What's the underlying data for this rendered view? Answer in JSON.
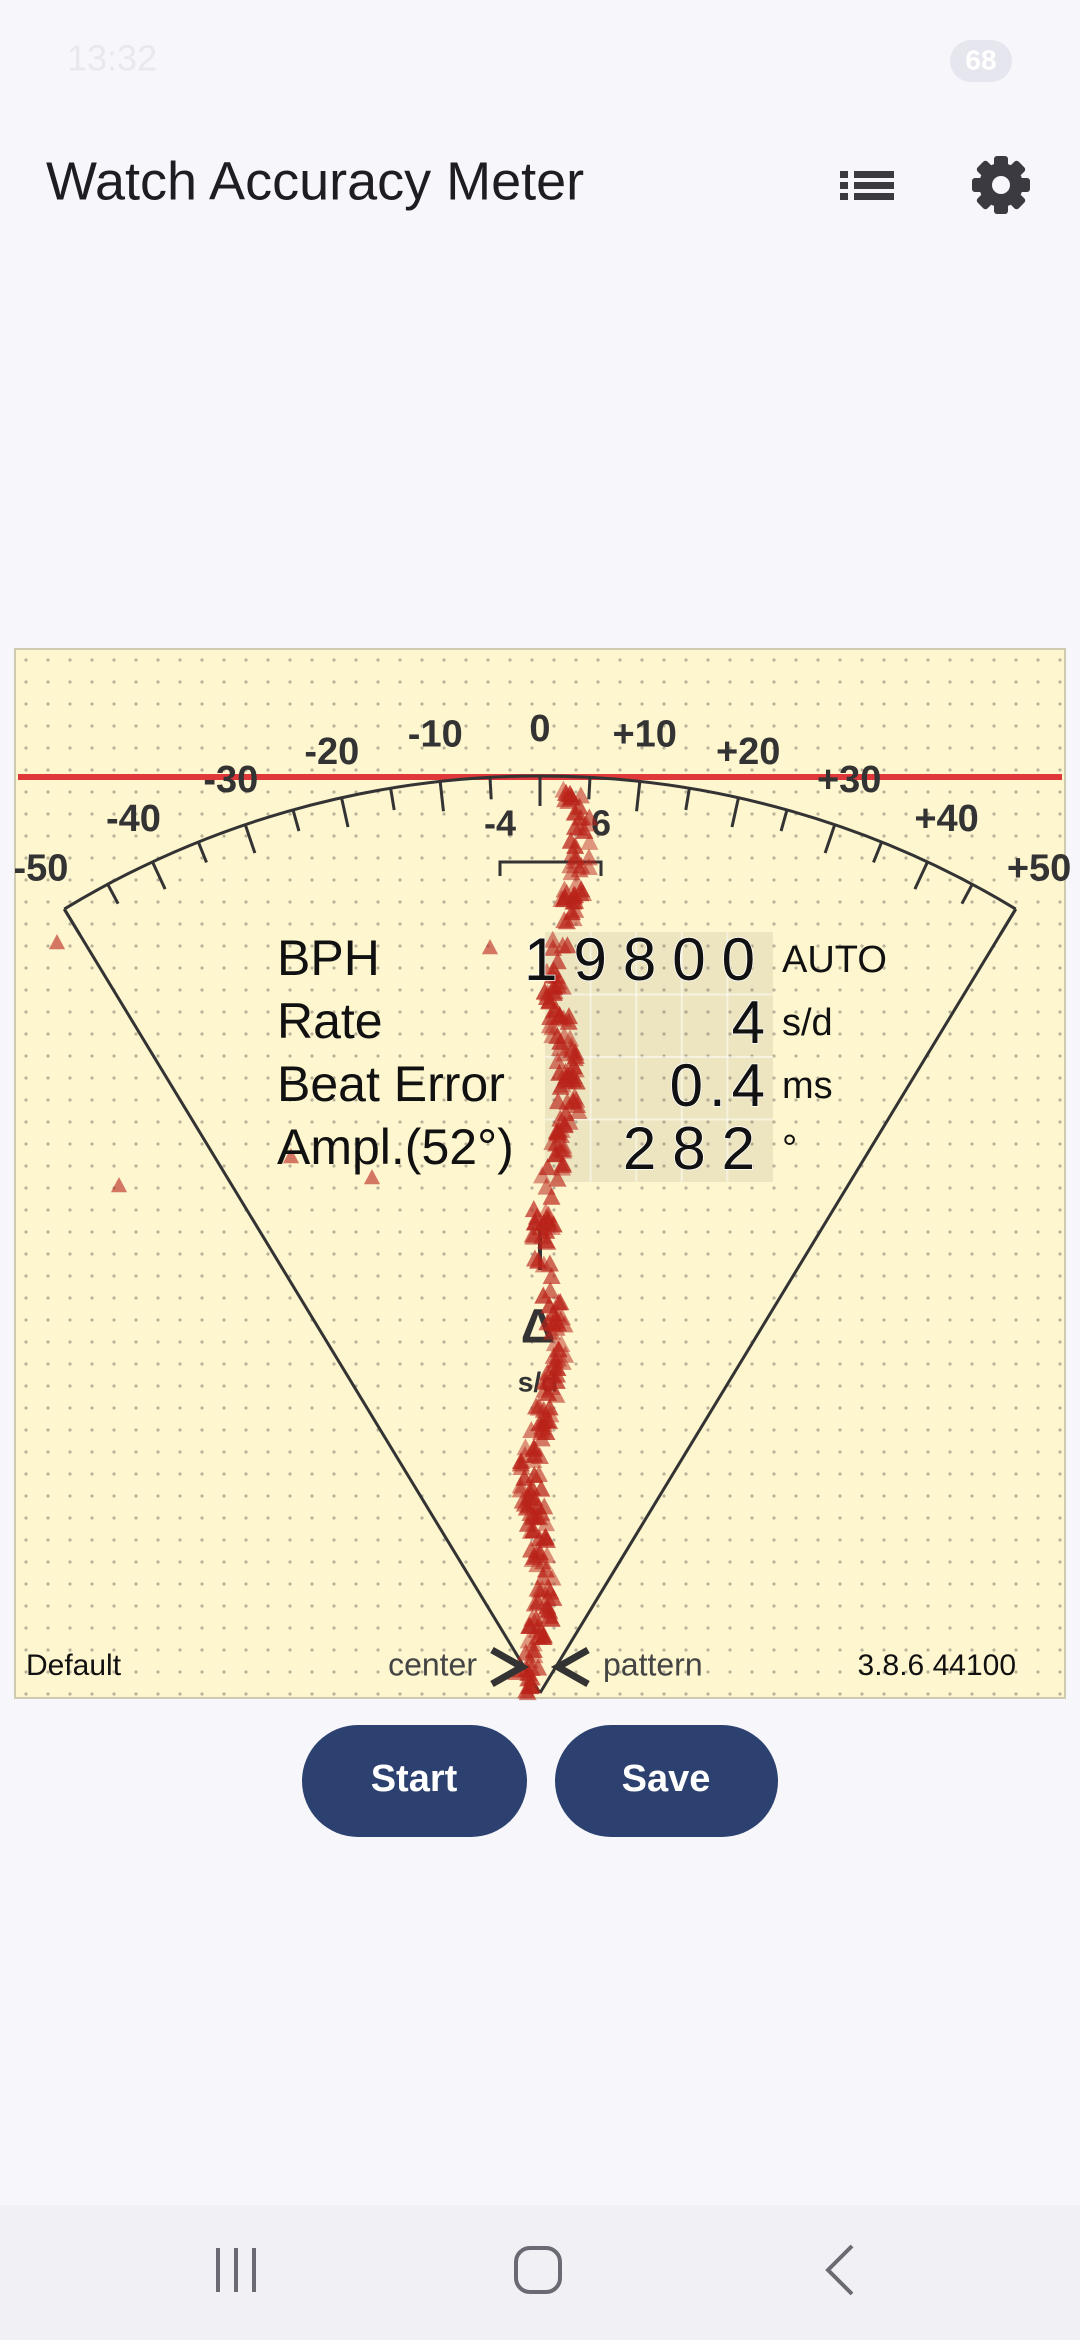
{
  "status_bar": {
    "time": "13:32",
    "battery": "68"
  },
  "app_bar": {
    "title": "Watch Accuracy Meter"
  },
  "dial": {
    "scale_labels": [
      "-50",
      "-40",
      "-30",
      "-20",
      "-10",
      "0",
      "+10",
      "+20",
      "+30",
      "+40",
      "+50"
    ],
    "window_low": "-4",
    "window_high": "6",
    "marker": "Δ",
    "marker_unit": "s/d"
  },
  "readout": {
    "rows": [
      {
        "label": "BPH",
        "value": 19800,
        "unit": "AUTO"
      },
      {
        "label": "Rate",
        "value": 4,
        "unit": "s/d"
      },
      {
        "label": "Beat Error",
        "value": 0.4,
        "unit": "ms"
      },
      {
        "label": "Ampl.(52°)",
        "value": 282,
        "unit": "°"
      }
    ]
  },
  "footer": {
    "profile": "Default",
    "center": "center",
    "pattern": "pattern",
    "version": "3.8.6 44100"
  },
  "buttons": {
    "start": "Start",
    "save": "Save"
  }
}
